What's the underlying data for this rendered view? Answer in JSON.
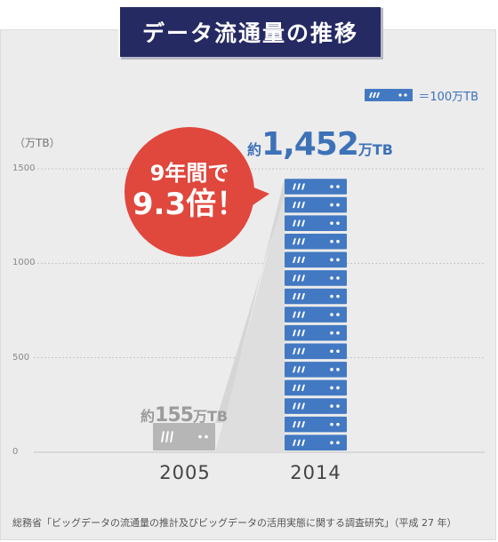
{
  "title": "データ流通量の推移",
  "legend": {
    "label": "＝100万TB",
    "unit_value": 100
  },
  "unit_label": "（万TB）",
  "callout": {
    "line1": "9年間で",
    "line2": "9.3倍！"
  },
  "annotations": {
    "v2014_prefix": "約",
    "v2014_value": "1,452",
    "v2014_unit": "万TB",
    "v2005_prefix": "約",
    "v2005_value": "155",
    "v2005_unit": "万TB"
  },
  "footer": "総務省「ビッグデータの流通量の推計及びビッグデータの活用実態に関する調査研究」（平成 27 年）",
  "colors": {
    "accent": "#4379c2",
    "old_bar": "#b6b6b6",
    "callout": "#e0473d",
    "title_bg": "#262a63"
  },
  "chart_data": {
    "type": "bar",
    "categories": [
      "2005",
      "2014"
    ],
    "values": [
      155,
      1452
    ],
    "ylim": [
      0,
      1500
    ],
    "yticks": [
      0,
      500,
      1000,
      1500
    ],
    "ylabel": "（万TB）",
    "grid": true
  }
}
